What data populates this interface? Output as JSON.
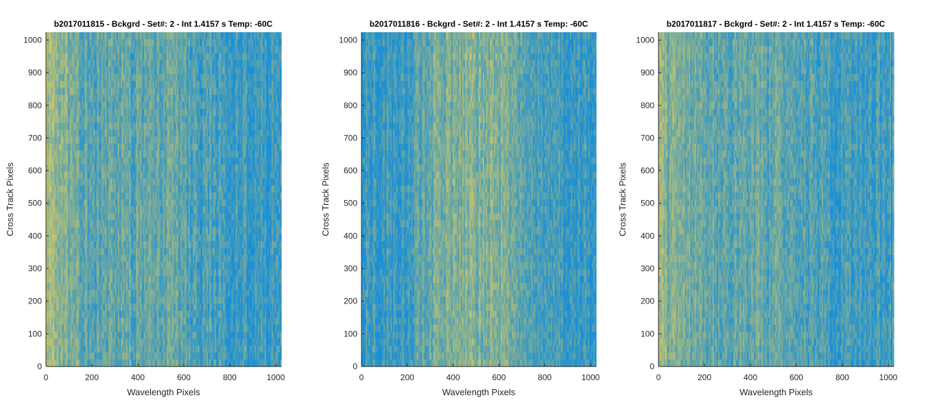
{
  "chart_data": [
    {
      "type": "heatmap",
      "title": "b2017011815 - Bckgrd - Set#: 2 - Int 1.4157 s Temp: -60C",
      "xlabel": "Wavelength Pixels",
      "ylabel": "Cross Track Pixels",
      "xlim": [
        0,
        1024
      ],
      "ylim": [
        0,
        1024
      ],
      "xticks": [
        0,
        200,
        400,
        600,
        800,
        1000
      ],
      "yticks": [
        0,
        100,
        200,
        300,
        400,
        500,
        600,
        700,
        800,
        900,
        1000
      ],
      "colormap": "parula",
      "low_color": "#1a8fd6",
      "high_color": "#c8c46a",
      "column_profile": {
        "x": [
          0,
          50,
          100,
          150,
          200,
          300,
          400,
          500,
          550,
          600,
          700,
          800,
          900,
          1000,
          1024
        ],
        "level": [
          0.85,
          0.72,
          0.55,
          0.45,
          0.4,
          0.38,
          0.4,
          0.45,
          0.48,
          0.35,
          0.28,
          0.22,
          0.18,
          0.18,
          0.17
        ]
      }
    },
    {
      "type": "heatmap",
      "title": "b2017011816 - Bckgrd - Set#: 2 - Int 1.4157 s Temp: -60C",
      "xlabel": "Wavelength Pixels",
      "ylabel": "Cross Track Pixels",
      "xlim": [
        0,
        1024
      ],
      "ylim": [
        0,
        1024
      ],
      "xticks": [
        0,
        200,
        400,
        600,
        800,
        1000
      ],
      "yticks": [
        0,
        100,
        200,
        300,
        400,
        500,
        600,
        700,
        800,
        900,
        1000
      ],
      "colormap": "parula",
      "low_color": "#1a8fd6",
      "high_color": "#c8c46a",
      "column_profile": {
        "x": [
          0,
          100,
          200,
          250,
          300,
          400,
          500,
          600,
          650,
          700,
          800,
          900,
          1000,
          1024
        ],
        "level": [
          0.22,
          0.18,
          0.2,
          0.35,
          0.52,
          0.55,
          0.58,
          0.62,
          0.55,
          0.4,
          0.3,
          0.22,
          0.15,
          0.15
        ]
      }
    },
    {
      "type": "heatmap",
      "title": "b2017011817 - Bckgrd - Set#: 2 - Int 1.4157 s Temp: -60C",
      "xlabel": "Wavelength Pixels",
      "ylabel": "Cross Track Pixels",
      "xlim": [
        0,
        1024
      ],
      "ylim": [
        0,
        1024
      ],
      "xticks": [
        0,
        200,
        400,
        600,
        800,
        1000
      ],
      "yticks": [
        0,
        100,
        200,
        300,
        400,
        500,
        600,
        700,
        800,
        900,
        1000
      ],
      "colormap": "parula",
      "low_color": "#1a8fd6",
      "high_color": "#c8c46a",
      "column_profile": {
        "x": [
          0,
          50,
          100,
          200,
          300,
          400,
          500,
          600,
          700,
          800,
          900,
          1000,
          1024
        ],
        "level": [
          0.7,
          0.62,
          0.5,
          0.45,
          0.42,
          0.45,
          0.42,
          0.38,
          0.3,
          0.22,
          0.2,
          0.22,
          0.2
        ]
      }
    }
  ]
}
